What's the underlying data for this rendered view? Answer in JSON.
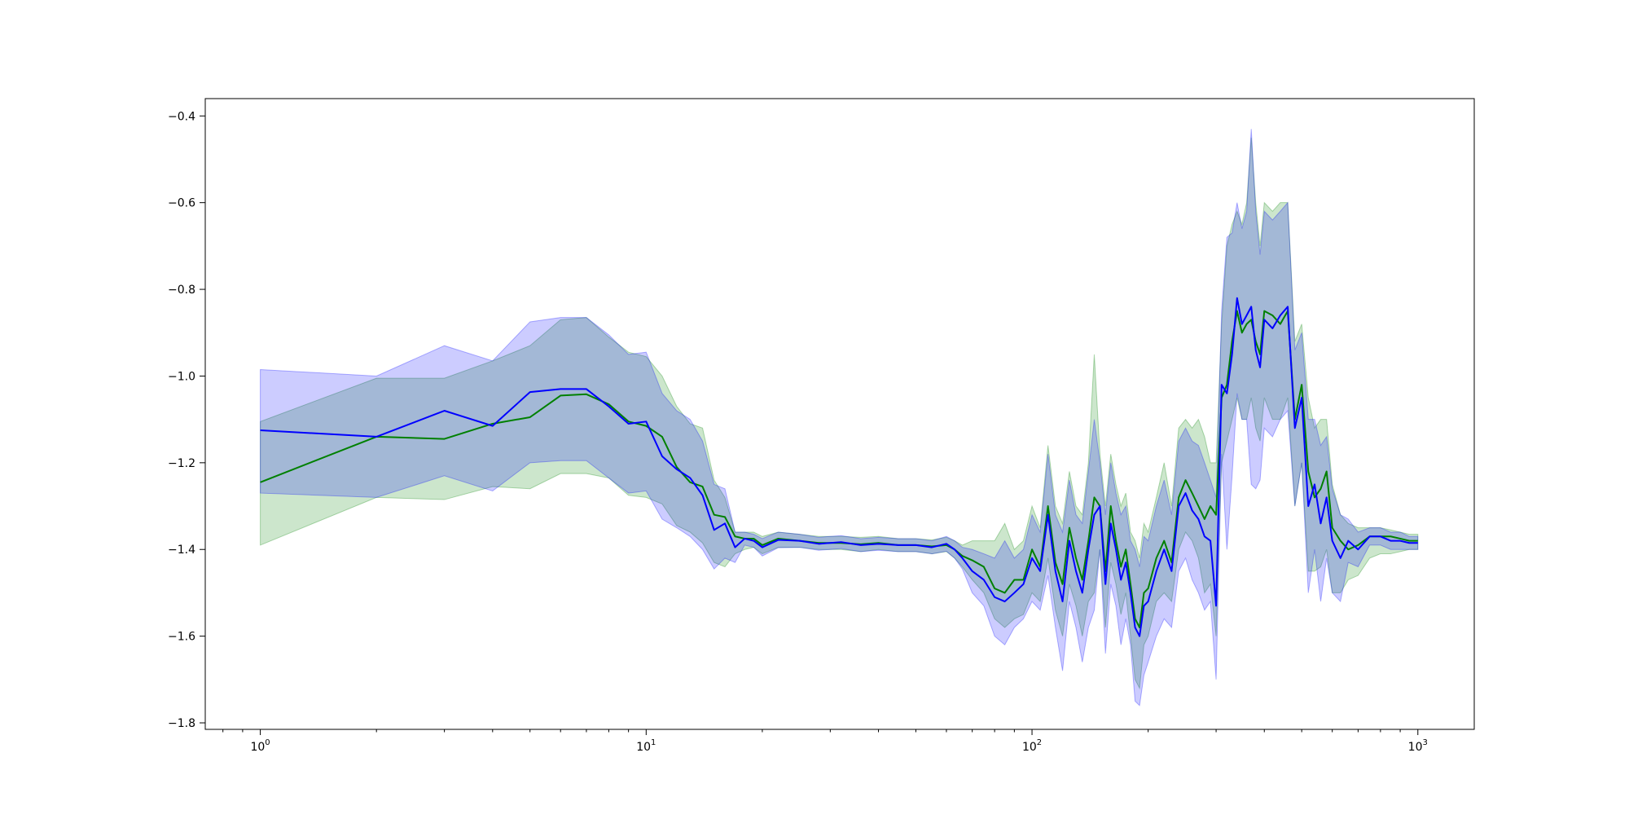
{
  "colors": {
    "green": "#008000",
    "blue": "#0000ff",
    "green_fill": "#008000",
    "blue_fill": "#0000ff",
    "axis": "#000000"
  },
  "chart_data": {
    "type": "line",
    "title": "",
    "xlabel": "",
    "ylabel": "",
    "x_scale": "log",
    "xlim": [
      0.72,
      1400
    ],
    "ylim": [
      -1.815,
      -0.36
    ],
    "grid": false,
    "legend": "none",
    "x_major_ticks": [
      {
        "value": 1,
        "base": "10",
        "exp": "0"
      },
      {
        "value": 10,
        "base": "10",
        "exp": "1"
      },
      {
        "value": 100,
        "base": "10",
        "exp": "2"
      },
      {
        "value": 1000,
        "base": "10",
        "exp": "3"
      }
    ],
    "y_ticks": [
      {
        "value": -1.8,
        "label": "−1.8"
      },
      {
        "value": -1.6,
        "label": "−1.6"
      },
      {
        "value": -1.4,
        "label": "−1.4"
      },
      {
        "value": -1.2,
        "label": "−1.2"
      },
      {
        "value": -1.0,
        "label": "−1.0"
      },
      {
        "value": -0.8,
        "label": "−0.8"
      },
      {
        "value": -0.6,
        "label": "−0.6"
      },
      {
        "value": -0.4,
        "label": "−0.4"
      }
    ],
    "x": [
      1,
      2,
      3,
      4,
      5,
      6,
      7,
      8,
      9,
      10,
      11,
      12,
      13,
      14,
      15,
      16,
      17,
      18,
      19,
      20,
      22,
      25,
      28,
      32,
      36,
      40,
      45,
      50,
      55,
      60,
      63,
      66,
      70,
      75,
      80,
      85,
      90,
      95,
      100,
      105,
      110,
      115,
      120,
      125,
      130,
      135,
      140,
      145,
      150,
      155,
      160,
      165,
      170,
      175,
      180,
      185,
      190,
      195,
      200,
      210,
      220,
      230,
      240,
      250,
      260,
      270,
      280,
      290,
      300,
      310,
      320,
      330,
      340,
      350,
      360,
      370,
      380,
      390,
      400,
      420,
      440,
      460,
      480,
      500,
      520,
      540,
      560,
      580,
      600,
      630,
      660,
      700,
      750,
      800,
      850,
      900,
      950,
      1000
    ],
    "series": [
      {
        "color_key": "green",
        "values": [
          -1.245,
          -1.14,
          -1.145,
          -1.11,
          -1.095,
          -1.045,
          -1.042,
          -1.065,
          -1.105,
          -1.115,
          -1.14,
          -1.21,
          -1.245,
          -1.255,
          -1.32,
          -1.325,
          -1.37,
          -1.375,
          -1.375,
          -1.39,
          -1.375,
          -1.38,
          -1.385,
          -1.385,
          -1.388,
          -1.385,
          -1.39,
          -1.39,
          -1.393,
          -1.39,
          -1.4,
          -1.415,
          -1.425,
          -1.44,
          -1.49,
          -1.5,
          -1.47,
          -1.47,
          -1.4,
          -1.44,
          -1.3,
          -1.43,
          -1.48,
          -1.35,
          -1.42,
          -1.47,
          -1.38,
          -1.28,
          -1.3,
          -1.45,
          -1.3,
          -1.38,
          -1.44,
          -1.4,
          -1.48,
          -1.56,
          -1.58,
          -1.5,
          -1.49,
          -1.42,
          -1.38,
          -1.43,
          -1.28,
          -1.24,
          -1.27,
          -1.3,
          -1.33,
          -1.3,
          -1.32,
          -1.05,
          -1.02,
          -0.92,
          -0.85,
          -0.9,
          -0.88,
          -0.87,
          -0.92,
          -0.95,
          -0.85,
          -0.86,
          -0.88,
          -0.85,
          -1.1,
          -1.02,
          -1.22,
          -1.28,
          -1.26,
          -1.22,
          -1.35,
          -1.38,
          -1.4,
          -1.39,
          -1.37,
          -1.37,
          -1.37,
          -1.375,
          -1.38,
          -1.38
        ]
      },
      {
        "color_key": "blue",
        "values": [
          -1.125,
          -1.14,
          -1.08,
          -1.115,
          -1.037,
          -1.03,
          -1.03,
          -1.07,
          -1.11,
          -1.105,
          -1.185,
          -1.215,
          -1.235,
          -1.275,
          -1.355,
          -1.34,
          -1.395,
          -1.375,
          -1.38,
          -1.395,
          -1.378,
          -1.38,
          -1.387,
          -1.383,
          -1.39,
          -1.387,
          -1.39,
          -1.39,
          -1.395,
          -1.387,
          -1.4,
          -1.42,
          -1.45,
          -1.47,
          -1.51,
          -1.52,
          -1.5,
          -1.48,
          -1.42,
          -1.45,
          -1.32,
          -1.45,
          -1.52,
          -1.38,
          -1.45,
          -1.5,
          -1.4,
          -1.32,
          -1.3,
          -1.48,
          -1.34,
          -1.4,
          -1.47,
          -1.43,
          -1.5,
          -1.58,
          -1.6,
          -1.53,
          -1.52,
          -1.45,
          -1.4,
          -1.45,
          -1.3,
          -1.27,
          -1.31,
          -1.33,
          -1.37,
          -1.38,
          -1.53,
          -1.02,
          -1.04,
          -0.95,
          -0.82,
          -0.88,
          -0.86,
          -0.84,
          -0.94,
          -0.98,
          -0.87,
          -0.89,
          -0.86,
          -0.84,
          -1.12,
          -1.05,
          -1.3,
          -1.25,
          -1.34,
          -1.28,
          -1.38,
          -1.42,
          -1.38,
          -1.4,
          -1.37,
          -1.37,
          -1.38,
          -1.38,
          -1.385,
          -1.385
        ]
      }
    ],
    "bands": [
      {
        "color_key": "green_fill",
        "upper": [
          -1.105,
          -1.005,
          -1.005,
          -0.965,
          -0.93,
          -0.87,
          -0.865,
          -0.91,
          -0.945,
          -0.955,
          -1.0,
          -1.07,
          -1.11,
          -1.12,
          -1.24,
          -1.28,
          -1.36,
          -1.36,
          -1.36,
          -1.37,
          -1.36,
          -1.365,
          -1.37,
          -1.37,
          -1.372,
          -1.37,
          -1.375,
          -1.375,
          -1.378,
          -1.372,
          -1.38,
          -1.39,
          -1.38,
          -1.38,
          -1.38,
          -1.34,
          -1.4,
          -1.38,
          -1.3,
          -1.35,
          -1.16,
          -1.3,
          -1.34,
          -1.22,
          -1.3,
          -1.32,
          -1.2,
          -0.95,
          -1.18,
          -1.3,
          -1.18,
          -1.25,
          -1.3,
          -1.27,
          -1.36,
          -1.38,
          -1.42,
          -1.34,
          -1.36,
          -1.28,
          -1.2,
          -1.3,
          -1.12,
          -1.1,
          -1.12,
          -1.1,
          -1.14,
          -1.2,
          -1.2,
          -0.88,
          -0.7,
          -0.65,
          -0.62,
          -0.65,
          -0.6,
          -0.45,
          -0.6,
          -0.7,
          -0.6,
          -0.62,
          -0.6,
          -0.6,
          -0.92,
          -0.88,
          -1.05,
          -1.12,
          -1.1,
          -1.1,
          -1.25,
          -1.32,
          -1.34,
          -1.35,
          -1.35,
          -1.35,
          -1.355,
          -1.36,
          -1.365,
          -1.365
        ],
        "lower": [
          -1.39,
          -1.28,
          -1.285,
          -1.255,
          -1.26,
          -1.225,
          -1.225,
          -1.235,
          -1.275,
          -1.28,
          -1.295,
          -1.345,
          -1.36,
          -1.385,
          -1.43,
          -1.44,
          -1.41,
          -1.4,
          -1.395,
          -1.41,
          -1.395,
          -1.395,
          -1.4,
          -1.4,
          -1.405,
          -1.4,
          -1.405,
          -1.405,
          -1.41,
          -1.405,
          -1.42,
          -1.44,
          -1.47,
          -1.5,
          -1.56,
          -1.58,
          -1.56,
          -1.55,
          -1.5,
          -1.52,
          -1.42,
          -1.54,
          -1.6,
          -1.48,
          -1.53,
          -1.6,
          -1.52,
          -1.5,
          -1.4,
          -1.58,
          -1.43,
          -1.48,
          -1.55,
          -1.5,
          -1.6,
          -1.7,
          -1.72,
          -1.62,
          -1.6,
          -1.52,
          -1.5,
          -1.52,
          -1.4,
          -1.36,
          -1.38,
          -1.42,
          -1.5,
          -1.48,
          -1.6,
          -1.2,
          -1.15,
          -1.1,
          -1.05,
          -1.1,
          -1.1,
          -1.05,
          -1.12,
          -1.15,
          -1.05,
          -1.1,
          -1.1,
          -1.05,
          -1.3,
          -1.2,
          -1.45,
          -1.45,
          -1.44,
          -1.4,
          -1.5,
          -1.5,
          -1.47,
          -1.46,
          -1.42,
          -1.41,
          -1.41,
          -1.405,
          -1.4,
          -1.4
        ]
      },
      {
        "color_key": "blue_fill",
        "upper": [
          -0.985,
          -1.0,
          -0.93,
          -0.965,
          -0.875,
          -0.865,
          -0.865,
          -0.905,
          -0.95,
          -0.945,
          -1.04,
          -1.08,
          -1.1,
          -1.15,
          -1.25,
          -1.26,
          -1.36,
          -1.36,
          -1.365,
          -1.375,
          -1.36,
          -1.365,
          -1.372,
          -1.368,
          -1.375,
          -1.372,
          -1.375,
          -1.375,
          -1.38,
          -1.37,
          -1.38,
          -1.395,
          -1.4,
          -1.41,
          -1.42,
          -1.38,
          -1.42,
          -1.4,
          -1.32,
          -1.36,
          -1.18,
          -1.32,
          -1.36,
          -1.24,
          -1.32,
          -1.34,
          -1.22,
          -1.1,
          -1.2,
          -1.32,
          -1.2,
          -1.27,
          -1.32,
          -1.3,
          -1.38,
          -1.4,
          -1.44,
          -1.37,
          -1.38,
          -1.3,
          -1.24,
          -1.32,
          -1.15,
          -1.12,
          -1.15,
          -1.16,
          -1.2,
          -1.24,
          -1.28,
          -0.85,
          -0.68,
          -0.67,
          -0.6,
          -0.66,
          -0.62,
          -0.43,
          -0.62,
          -0.72,
          -0.62,
          -0.64,
          -0.62,
          -0.6,
          -0.94,
          -0.9,
          -1.1,
          -1.1,
          -1.16,
          -1.14,
          -1.26,
          -1.32,
          -1.33,
          -1.36,
          -1.35,
          -1.35,
          -1.36,
          -1.36,
          -1.37,
          -1.37
        ],
        "lower": [
          -1.27,
          -1.28,
          -1.23,
          -1.265,
          -1.2,
          -1.195,
          -1.195,
          -1.235,
          -1.27,
          -1.265,
          -1.33,
          -1.35,
          -1.37,
          -1.4,
          -1.445,
          -1.42,
          -1.43,
          -1.39,
          -1.395,
          -1.415,
          -1.396,
          -1.395,
          -1.402,
          -1.398,
          -1.405,
          -1.402,
          -1.405,
          -1.405,
          -1.41,
          -1.404,
          -1.42,
          -1.445,
          -1.5,
          -1.53,
          -1.6,
          -1.62,
          -1.58,
          -1.56,
          -1.52,
          -1.54,
          -1.46,
          -1.58,
          -1.68,
          -1.52,
          -1.58,
          -1.66,
          -1.58,
          -1.54,
          -1.4,
          -1.64,
          -1.48,
          -1.53,
          -1.62,
          -1.56,
          -1.62,
          -1.75,
          -1.76,
          -1.69,
          -1.66,
          -1.6,
          -1.56,
          -1.58,
          -1.45,
          -1.42,
          -1.47,
          -1.5,
          -1.54,
          -1.52,
          -1.7,
          -1.18,
          -1.4,
          -1.23,
          -1.04,
          -1.1,
          -1.1,
          -1.25,
          -1.26,
          -1.24,
          -1.12,
          -1.14,
          -1.1,
          -1.08,
          -1.3,
          -1.2,
          -1.5,
          -1.4,
          -1.52,
          -1.42,
          -1.5,
          -1.52,
          -1.43,
          -1.44,
          -1.39,
          -1.39,
          -1.4,
          -1.4,
          -1.4,
          -1.4
        ]
      }
    ]
  }
}
